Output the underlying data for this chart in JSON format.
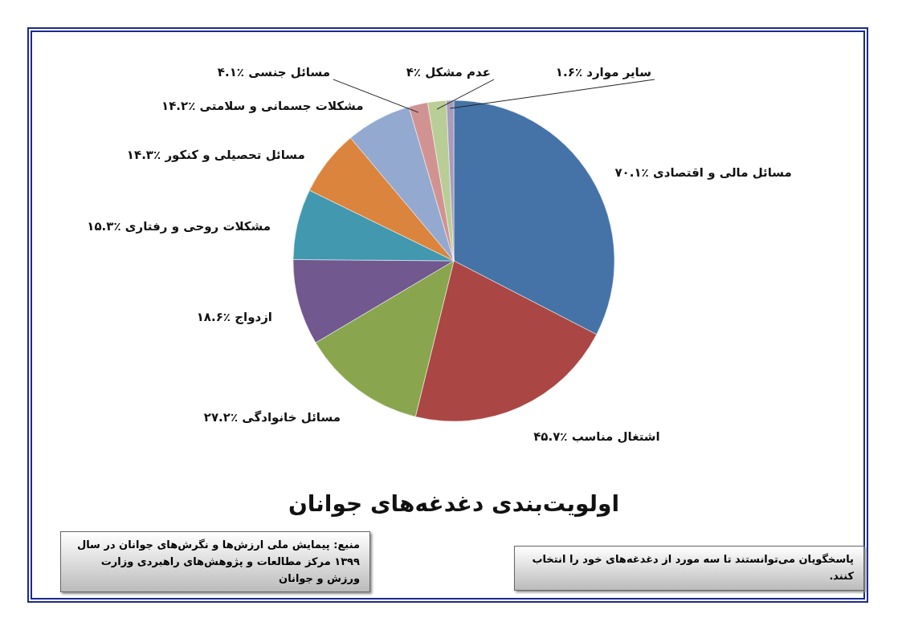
{
  "chart_data": {
    "type": "pie",
    "title": "اولویت‌بندی دغدغه‌های جوانان",
    "categories": [
      "مسائل مالی و اقتصادی",
      "اشتغال مناسب",
      "مسائل خانوادگی",
      "ازدواج",
      "مشکلات روحی و رفتاری",
      "مسائل تحصیلی و کنکور",
      "مشکلات جسمانی و سلامتی",
      "مسائل جنسی",
      "عدم مشکل",
      "سایر موارد"
    ],
    "values": [
      70.1,
      45.7,
      27.2,
      18.6,
      15.3,
      14.3,
      14.2,
      4.1,
      4,
      1.6
    ],
    "value_labels": [
      "٪۷۰.۱",
      "٪۴۵.۷",
      "٪۲۷.۲",
      "٪۱۸.۶",
      "٪۱۵.۳",
      "٪۱۴.۳",
      "٪۱۴.۲",
      "٪۴.۱",
      "٪۴",
      "٪۱.۶"
    ],
    "colors": [
      "#4573a7",
      "#aa4643",
      "#89a54e",
      "#71588f",
      "#4198af",
      "#db843d",
      "#93a9cf",
      "#d19392",
      "#b9cd96",
      "#a99bbd"
    ],
    "legend": false,
    "annotations": [
      "منبع: پیمایش ملی ارزش‌ها و نگرش‌های جوانان در سال ۱۳۹۹ مرکز مطالعات و پژوهش‌های راهبردی  وزارت ورزش و جوانان",
      "پاسخگویان می‌توانستند تا سه مورد از دغدغه‌های خود را انتخاب کنند."
    ]
  }
}
